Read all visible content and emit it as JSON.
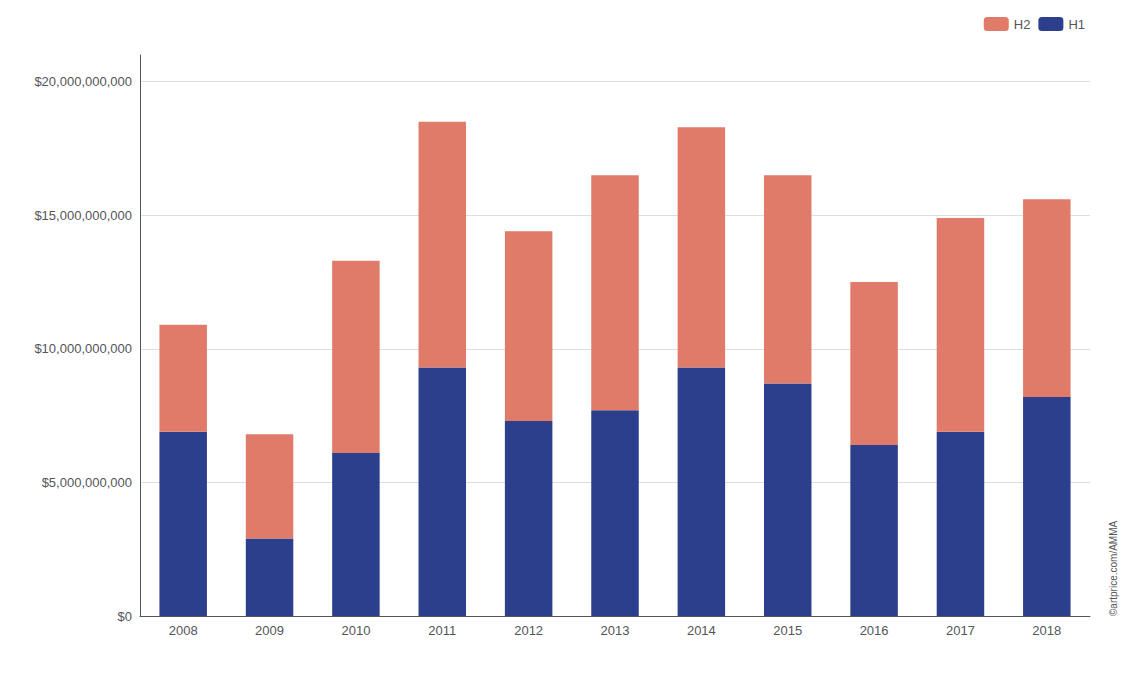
{
  "chart_data": {
    "type": "bar",
    "stacked": true,
    "categories": [
      "2008",
      "2009",
      "2010",
      "2011",
      "2012",
      "2013",
      "2014",
      "2015",
      "2016",
      "2017",
      "2018"
    ],
    "series": [
      {
        "name": "H1",
        "color": "#2b3f8c",
        "values": [
          6900000000,
          2900000000,
          6100000000,
          9300000000,
          7300000000,
          7700000000,
          9300000000,
          8700000000,
          6400000000,
          6900000000,
          8200000000
        ]
      },
      {
        "name": "H2",
        "color": "#e07b6a",
        "values": [
          4000000000,
          3900000000,
          7200000000,
          9200000000,
          7100000000,
          8800000000,
          9000000000,
          7800000000,
          6100000000,
          8000000000,
          7400000000
        ]
      }
    ],
    "ylim": [
      0,
      21000000000
    ],
    "yticks": [
      {
        "value": 0,
        "label": "$0"
      },
      {
        "value": 5000000000,
        "label": "$5,000,000,000"
      },
      {
        "value": 10000000000,
        "label": "$10,000,000,000"
      },
      {
        "value": 15000000000,
        "label": "$15,000,000,000"
      },
      {
        "value": 20000000000,
        "label": "$20,000,000,000"
      }
    ],
    "grid": true,
    "legend": "upper right",
    "annotations": [
      "©artprice.com/AMMA"
    ]
  }
}
